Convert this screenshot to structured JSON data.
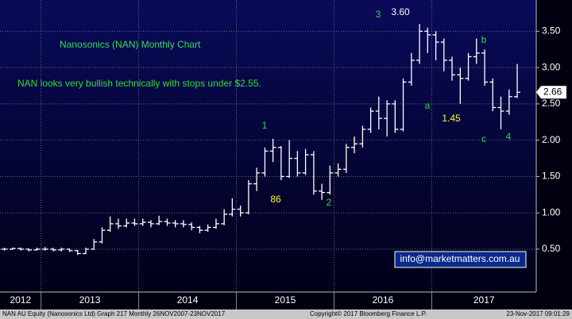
{
  "chart_data": {
    "type": "ohlc",
    "title": "Nanosonics (NAN) Monthly Chart",
    "subtitle": "NAN looks very bullish technically with stops under $2.55.",
    "x": [
      2012.625,
      2012.708,
      2012.792,
      2012.875,
      2012.958,
      2013.042,
      2013.125,
      2013.208,
      2013.292,
      2013.375,
      2013.458,
      2013.542,
      2013.625,
      2013.708,
      2013.792,
      2013.875,
      2013.958,
      2014.042,
      2014.125,
      2014.208,
      2014.292,
      2014.375,
      2014.458,
      2014.542,
      2014.625,
      2014.708,
      2014.792,
      2014.875,
      2014.958,
      2015.042,
      2015.125,
      2015.208,
      2015.292,
      2015.375,
      2015.458,
      2015.542,
      2015.625,
      2015.708,
      2015.792,
      2015.875,
      2015.958,
      2016.042,
      2016.125,
      2016.208,
      2016.292,
      2016.375,
      2016.458,
      2016.542,
      2016.625,
      2016.708,
      2016.792,
      2016.875,
      2016.958,
      2017.042,
      2017.125,
      2017.208,
      2017.292,
      2017.375,
      2017.458,
      2017.542,
      2017.625,
      2017.708,
      2017.792,
      2017.875
    ],
    "open": [
      0.5,
      0.5,
      0.51,
      0.5,
      0.49,
      0.5,
      0.5,
      0.49,
      0.5,
      0.48,
      0.44,
      0.5,
      0.6,
      0.76,
      0.85,
      0.82,
      0.86,
      0.85,
      0.87,
      0.85,
      0.88,
      0.86,
      0.85,
      0.84,
      0.8,
      0.76,
      0.8,
      0.85,
      0.98,
      1.05,
      1.0,
      1.4,
      1.55,
      1.85,
      1.9,
      1.5,
      1.75,
      1.55,
      1.8,
      1.3,
      1.28,
      1.55,
      1.6,
      1.9,
      1.95,
      2.15,
      2.4,
      2.3,
      2.5,
      2.15,
      2.8,
      3.1,
      3.5,
      3.45,
      3.35,
      3.1,
      2.9,
      2.85,
      3.15,
      3.2,
      2.8,
      2.45,
      2.4,
      2.6
    ],
    "high": [
      0.52,
      0.52,
      0.52,
      0.51,
      0.52,
      0.53,
      0.52,
      0.52,
      0.51,
      0.49,
      0.52,
      0.64,
      0.8,
      0.95,
      0.92,
      0.92,
      0.92,
      0.92,
      0.9,
      0.96,
      0.92,
      0.9,
      0.9,
      0.87,
      0.82,
      0.84,
      0.92,
      1.05,
      1.2,
      1.1,
      1.45,
      1.62,
      1.9,
      2.02,
      1.92,
      2.0,
      1.85,
      1.88,
      1.85,
      1.4,
      1.65,
      1.68,
      1.95,
      2.05,
      2.2,
      2.45,
      2.6,
      2.55,
      2.55,
      2.85,
      3.2,
      3.6,
      3.55,
      3.5,
      3.4,
      3.15,
      3.0,
      3.2,
      3.4,
      3.25,
      2.85,
      2.6,
      2.7,
      3.05
    ],
    "low": [
      0.48,
      0.49,
      0.48,
      0.47,
      0.48,
      0.48,
      0.47,
      0.47,
      0.46,
      0.42,
      0.43,
      0.49,
      0.58,
      0.74,
      0.78,
      0.8,
      0.82,
      0.82,
      0.8,
      0.83,
      0.82,
      0.8,
      0.8,
      0.76,
      0.72,
      0.74,
      0.78,
      0.83,
      0.95,
      0.95,
      0.98,
      1.3,
      1.5,
      1.7,
      1.45,
      1.48,
      1.5,
      1.52,
      1.25,
      1.18,
      1.25,
      1.5,
      1.55,
      1.82,
      1.9,
      2.1,
      2.15,
      2.05,
      2.1,
      2.12,
      2.75,
      3.05,
      3.2,
      3.1,
      2.95,
      2.82,
      2.5,
      2.82,
      3.05,
      2.75,
      2.4,
      2.15,
      2.35,
      2.58
    ],
    "close": [
      0.5,
      0.51,
      0.5,
      0.49,
      0.5,
      0.5,
      0.49,
      0.5,
      0.48,
      0.44,
      0.5,
      0.6,
      0.76,
      0.85,
      0.82,
      0.86,
      0.85,
      0.87,
      0.85,
      0.88,
      0.86,
      0.85,
      0.84,
      0.8,
      0.76,
      0.8,
      0.85,
      0.98,
      1.05,
      1.0,
      1.4,
      1.55,
      1.85,
      1.9,
      1.5,
      1.75,
      1.55,
      1.8,
      1.3,
      1.28,
      1.55,
      1.6,
      1.9,
      1.95,
      2.15,
      2.4,
      2.3,
      2.5,
      2.15,
      2.8,
      3.1,
      3.5,
      3.45,
      3.35,
      3.1,
      2.9,
      2.85,
      3.15,
      3.2,
      2.8,
      2.45,
      2.4,
      2.6,
      2.66
    ],
    "color": "#ffffff",
    "last_price": 2.66,
    "xlim": [
      2012.58,
      2018.07
    ],
    "xticks": [
      2013,
      2014,
      2015,
      2016,
      2017
    ],
    "year_labels": [
      "2012",
      "2013",
      "2014",
      "2015",
      "2016",
      "2017"
    ],
    "ylim": [
      -0.09,
      3.93
    ],
    "yticks": [
      {
        "value": 0.5,
        "label": "0.50"
      },
      {
        "value": 1.0,
        "label": "1.00"
      },
      {
        "value": 1.5,
        "label": "1.50"
      },
      {
        "value": 2.0,
        "label": "2.00"
      },
      {
        "value": 2.5,
        "label": "2.50"
      },
      {
        "value": 3.0,
        "label": "3.00"
      },
      {
        "value": 3.5,
        "label": "3.50"
      }
    ],
    "grid": true,
    "annotations": [
      {
        "text": "3",
        "color": "#33dd33"
      },
      {
        "text": "3.60",
        "color": "#ffffff"
      },
      {
        "text": "1",
        "color": "#33dd33"
      },
      {
        "text": "86",
        "color": "#ffff33"
      },
      {
        "text": "2",
        "color": "#33dd33"
      },
      {
        "text": "a",
        "color": "#33dd33"
      },
      {
        "text": "1.45",
        "color": "#ffff33"
      },
      {
        "text": "b",
        "color": "#33dd33"
      },
      {
        "text": "c",
        "color": "#33dd33"
      },
      {
        "text": "4",
        "color": "#33dd33"
      }
    ],
    "watermark": "info@marketmatters.com.au",
    "footer": [
      "NAN AU Equity (Nanosonics Ltd) Graph 217  Monthly 26NOV2007-23NOV2017",
      "Copyright© 2017 Bloomberg Finance L.P.",
      "23-Nov-2017 09:01:29"
    ]
  }
}
